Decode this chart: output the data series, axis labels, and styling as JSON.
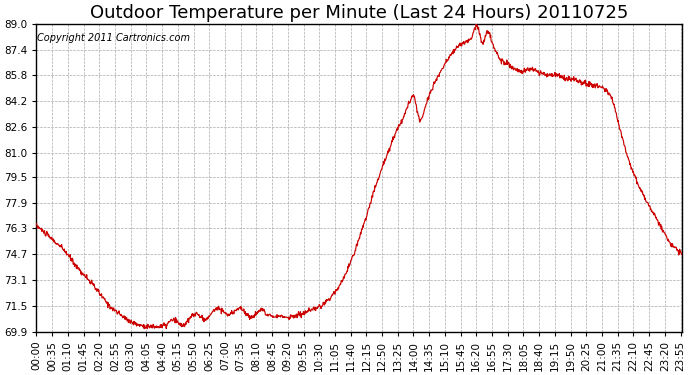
{
  "title": "Outdoor Temperature per Minute (Last 24 Hours) 20110725",
  "copyright_text": "Copyright 2011 Cartronics.com",
  "line_color": "#cc0000",
  "background_color": "#ffffff",
  "grid_color": "#aaaaaa",
  "ylim": [
    69.9,
    89.0
  ],
  "yticks": [
    69.9,
    71.5,
    73.1,
    74.7,
    76.3,
    77.9,
    79.5,
    81.0,
    82.6,
    84.2,
    85.8,
    87.4,
    89.0
  ],
  "xlabel": "",
  "ylabel": "",
  "title_fontsize": 13,
  "tick_fontsize": 7.5,
  "copyright_fontsize": 7
}
